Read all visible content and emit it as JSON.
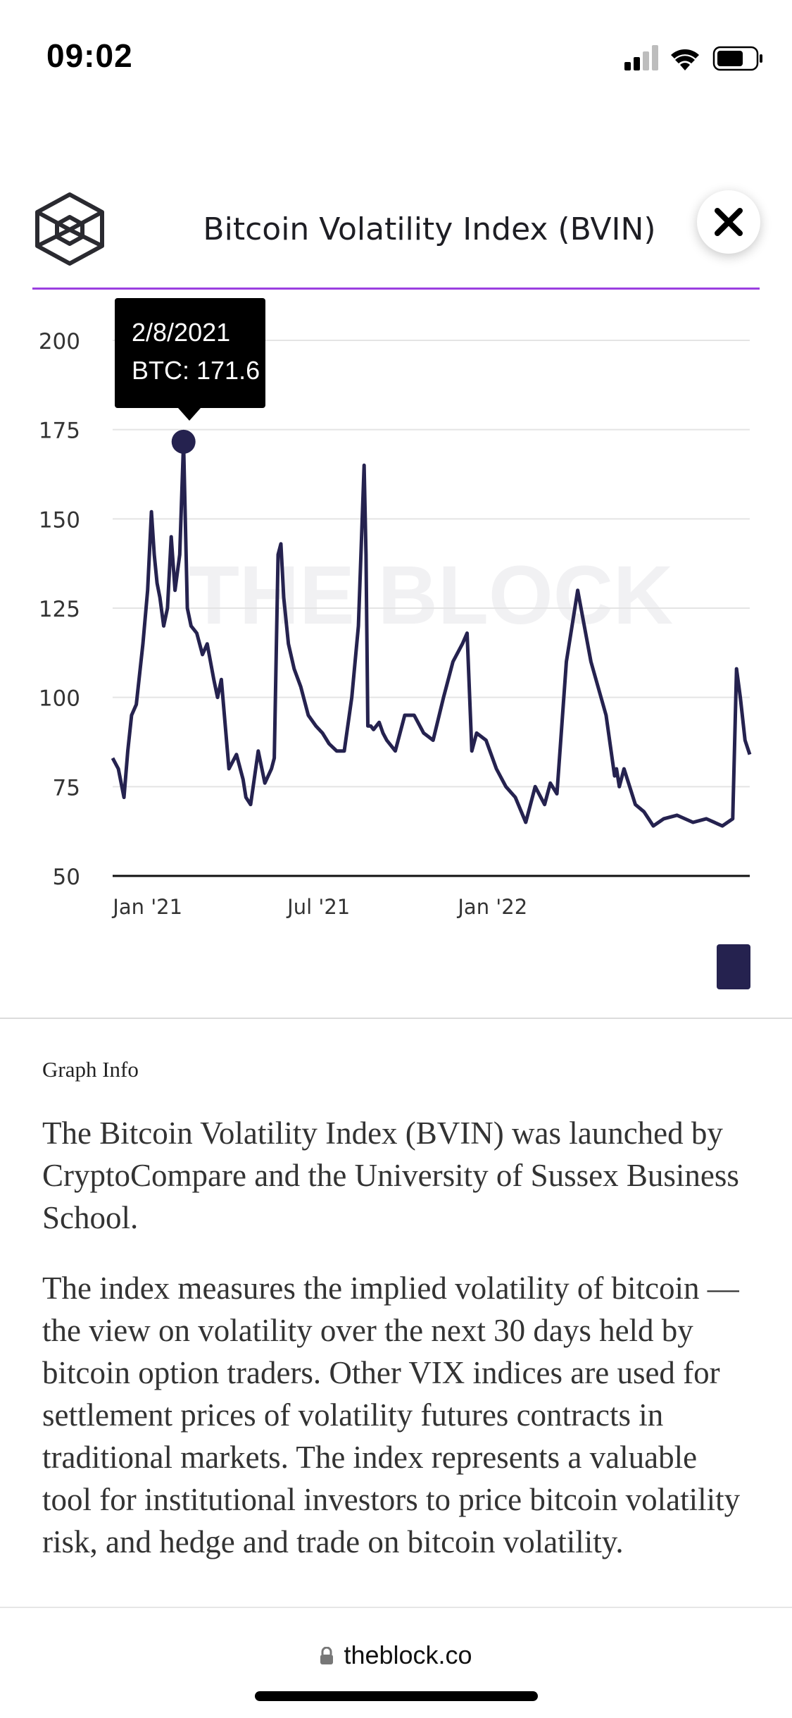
{
  "status_bar": {
    "time": "09:02",
    "icons": [
      "cellular-signal-icon",
      "wifi-icon",
      "battery-icon"
    ]
  },
  "header": {
    "title": "Bitcoin Volatility Index (BVIN)",
    "logo_icon": "the-block-cube-logo",
    "close_icon": "close-icon"
  },
  "watermark": "THE BLOCK",
  "tooltip": {
    "date": "2/8/2021",
    "value_label": "BTC: 171.6"
  },
  "chart_data": {
    "type": "line",
    "title": "Bitcoin Volatility Index (BVIN)",
    "ylim": [
      50,
      200
    ],
    "yticks": [
      50,
      75,
      100,
      125,
      150,
      175,
      200
    ],
    "xticks": [
      "Jan '21",
      "Jul '21",
      "Jan '22"
    ],
    "grid": true,
    "color": "#25224f",
    "series": [
      {
        "name": "BTC",
        "x": [
          "2020-11-25",
          "2020-12-01",
          "2020-12-07",
          "2020-12-11",
          "2020-12-15",
          "2020-12-20",
          "2020-12-27",
          "2021-01-01",
          "2021-01-05",
          "2021-01-08",
          "2021-01-11",
          "2021-01-14",
          "2021-01-18",
          "2021-01-22",
          "2021-01-26",
          "2021-01-30",
          "2021-02-04",
          "2021-02-08",
          "2021-02-12",
          "2021-02-16",
          "2021-02-22",
          "2021-02-28",
          "2021-03-05",
          "2021-03-12",
          "2021-03-16",
          "2021-03-20",
          "2021-03-28",
          "2021-04-05",
          "2021-04-12",
          "2021-04-15",
          "2021-04-20",
          "2021-04-28",
          "2021-05-05",
          "2021-05-12",
          "2021-05-15",
          "2021-05-19",
          "2021-05-22",
          "2021-05-25",
          "2021-05-30",
          "2021-06-05",
          "2021-06-12",
          "2021-06-20",
          "2021-06-28",
          "2021-07-05",
          "2021-07-12",
          "2021-07-20",
          "2021-07-28",
          "2021-08-05",
          "2021-08-12",
          "2021-08-18",
          "2021-08-20",
          "2021-08-22",
          "2021-08-25",
          "2021-08-28",
          "2021-09-03",
          "2021-09-07",
          "2021-09-11",
          "2021-09-20",
          "2021-09-30",
          "2021-10-10",
          "2021-10-20",
          "2021-10-30",
          "2021-11-10",
          "2021-11-20",
          "2021-11-30",
          "2021-12-05",
          "2021-12-10",
          "2021-12-15",
          "2021-12-25",
          "2022-01-05",
          "2022-01-15",
          "2022-01-25",
          "2022-02-05",
          "2022-02-15",
          "2022-02-25",
          "2022-03-03",
          "2022-03-10",
          "2022-03-20",
          "2022-04-01",
          "2022-04-15",
          "2022-05-01",
          "2022-05-10",
          "2022-05-12",
          "2022-05-15",
          "2022-05-20",
          "2022-06-01",
          "2022-06-10",
          "2022-06-15",
          "2022-06-20",
          "2022-07-01",
          "2022-07-15",
          "2022-08-01",
          "2022-08-15",
          "2022-09-01",
          "2022-09-12",
          "2022-09-16",
          "2022-09-20",
          "2022-09-25",
          "2022-09-30"
        ],
        "values": [
          83,
          80,
          72,
          85,
          95,
          98,
          115,
          130,
          152,
          140,
          132,
          128,
          120,
          125,
          145,
          130,
          140,
          171.6,
          125,
          120,
          118,
          112,
          115,
          105,
          100,
          105,
          80,
          84,
          77,
          72,
          70,
          85,
          76,
          80,
          83,
          140,
          143,
          128,
          115,
          108,
          103,
          95,
          92,
          90,
          87,
          85,
          85,
          100,
          120,
          165,
          140,
          92,
          92,
          91,
          93,
          90,
          88,
          85,
          95,
          95,
          90,
          88,
          100,
          110,
          115,
          118,
          85,
          90,
          88,
          80,
          75,
          72,
          65,
          75,
          70,
          76,
          73,
          110,
          130,
          110,
          95,
          78,
          80,
          75,
          80,
          70,
          68,
          66,
          64,
          66,
          67,
          65,
          66,
          64,
          66,
          108,
          100,
          88,
          84
        ]
      }
    ]
  },
  "info": {
    "heading": "Graph Info",
    "paragraphs": [
      "The Bitcoin Volatility Index (BVIN) was launched by CryptoCompare and the University of Sussex Business School.",
      "The index measures the implied volatility of bitcoin — the view on volatility over the next 30 days held by bitcoin option traders. Other VIX indices are used for settlement prices of volatility futures contracts in traditional markets. The index represents a valuable tool for institutional investors to price bitcoin volatility risk, and hedge and trade on bitcoin volatility."
    ]
  },
  "browser": {
    "url": "theblock.co",
    "lock_icon": "lock-icon"
  }
}
